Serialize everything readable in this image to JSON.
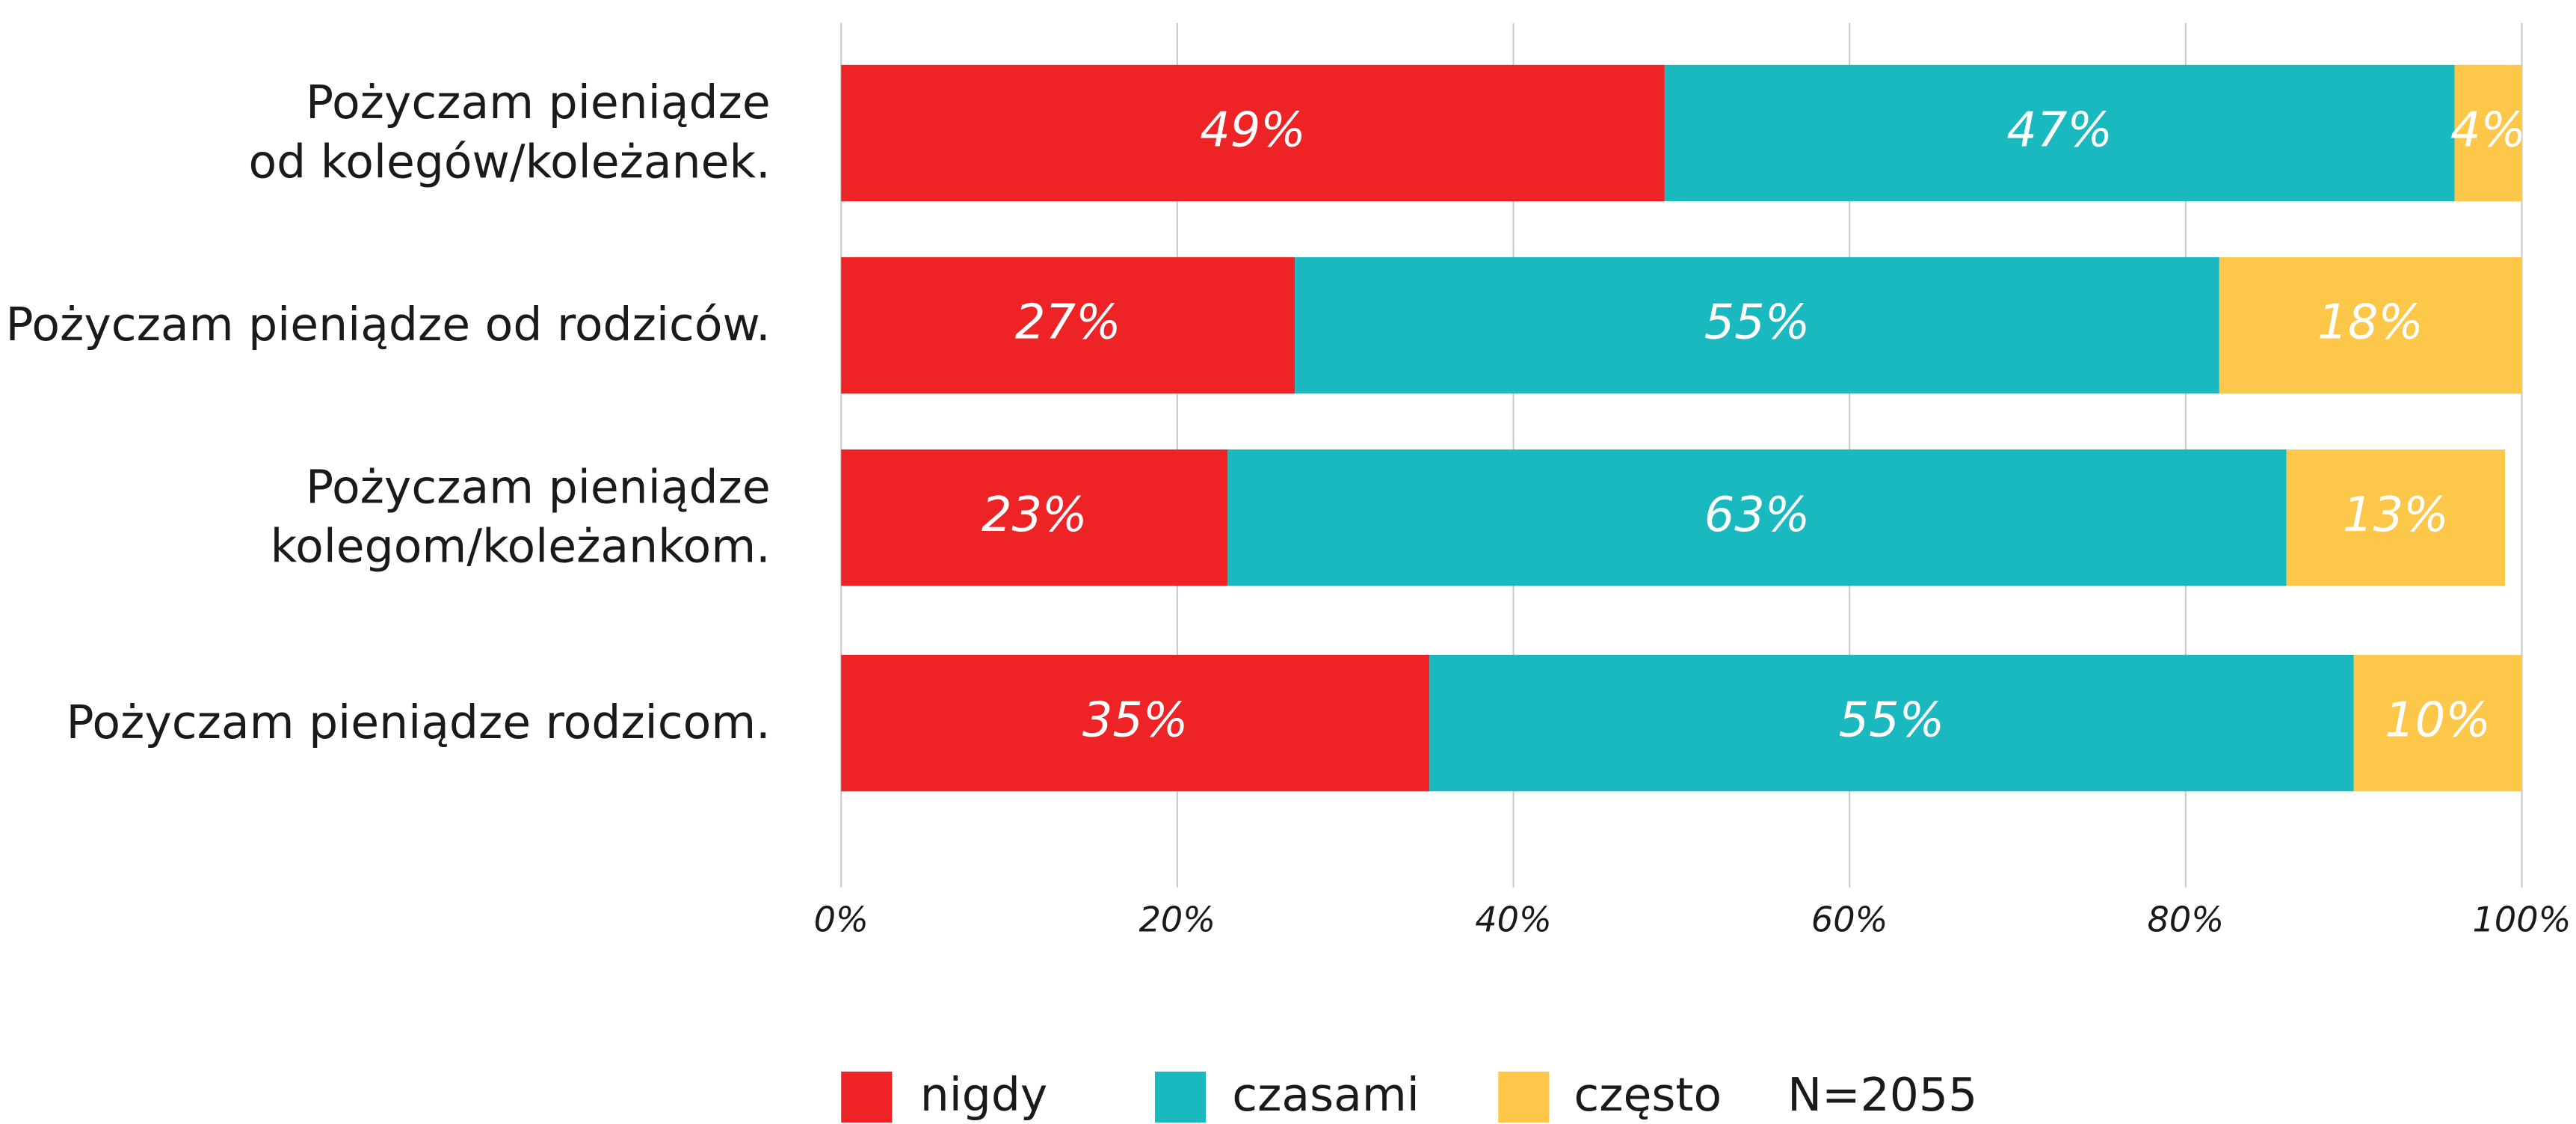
{
  "chart_data": {
    "type": "stacked_bar_horizontal",
    "categories": [
      "Pożyczam pieniądze\nod kolegów/koleżanek.",
      "Pożyczam pieniądze od rodziców.",
      "Pożyczam pieniądze\nkolegom/koleżankom.",
      "Pożyczam pieniądze rodzicom."
    ],
    "series": [
      {
        "name": "nigdy",
        "color": "#ee2326",
        "values": [
          49,
          27,
          23,
          35
        ],
        "value_labels": [
          "49%",
          "27%",
          "23%",
          "35%"
        ]
      },
      {
        "name": "czasami",
        "color": "#1ab9c0",
        "values": [
          47,
          55,
          63,
          55
        ],
        "value_labels": [
          "47%",
          "55%",
          "63%",
          "55%"
        ]
      },
      {
        "name": "często",
        "color": "#fdc84a",
        "values": [
          4,
          18,
          13,
          10
        ],
        "value_labels": [
          "4%",
          "18%",
          "13%",
          "10%"
        ]
      }
    ],
    "xlim": [
      0,
      100
    ],
    "xticks": [
      {
        "value": 0,
        "label": "0%"
      },
      {
        "value": 20,
        "label": "20%"
      },
      {
        "value": 40,
        "label": "40%"
      },
      {
        "value": 60,
        "label": "60%"
      },
      {
        "value": 80,
        "label": "80%"
      },
      {
        "value": 100,
        "label": "100%"
      }
    ],
    "grid": true,
    "annotation": "N=2055"
  }
}
